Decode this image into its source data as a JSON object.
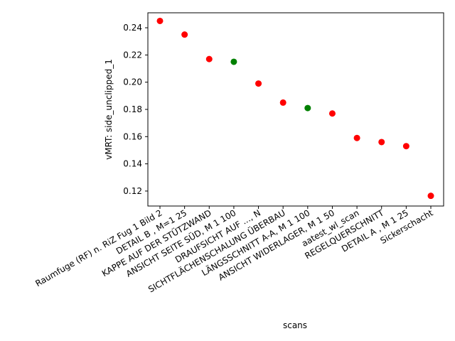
{
  "chart_data": {
    "type": "scatter",
    "xlabel": "scans",
    "ylabel": "vMRT: side_unclipped_1",
    "ylim": [
      0.109,
      0.251
    ],
    "yticks": [
      0.12,
      0.14,
      0.16,
      0.18,
      0.2,
      0.22,
      0.24
    ],
    "ytick_labels": [
      "0.12",
      "0.14",
      "0.16",
      "0.18",
      "0.20",
      "0.22",
      "0.24"
    ],
    "grid": false,
    "categories": [
      "Raumfuge (RF) n. RiZ Fug 1 Bild 2",
      "DETAIL  B , M=1 25",
      "KAPPE AUF DER STÜTZWAND",
      "ANSICHT SEITE SÜD, M 1  100",
      "DRAUFSICHT AUF ..., N",
      "SICHTFLÄCHENSCHALUNG   ÜBERBAU",
      "LÄNGSSCHNITT A-A, M 1 100",
      "ANSICHT WIDERLAGER, M 1 50",
      "aatest_wl_scan",
      "REGELQUERSCHNITT",
      "DETAIL  A , M 1 25",
      "Sickerschacht"
    ],
    "values": [
      0.245,
      0.235,
      0.217,
      0.215,
      0.199,
      0.185,
      0.181,
      0.177,
      0.159,
      0.156,
      0.153,
      0.1165
    ],
    "point_colors": [
      "#ff0000",
      "#ff0000",
      "#ff0000",
      "#008000",
      "#ff0000",
      "#ff0000",
      "#008000",
      "#ff0000",
      "#ff0000",
      "#ff0000",
      "#ff0000",
      "#ff0000"
    ]
  }
}
